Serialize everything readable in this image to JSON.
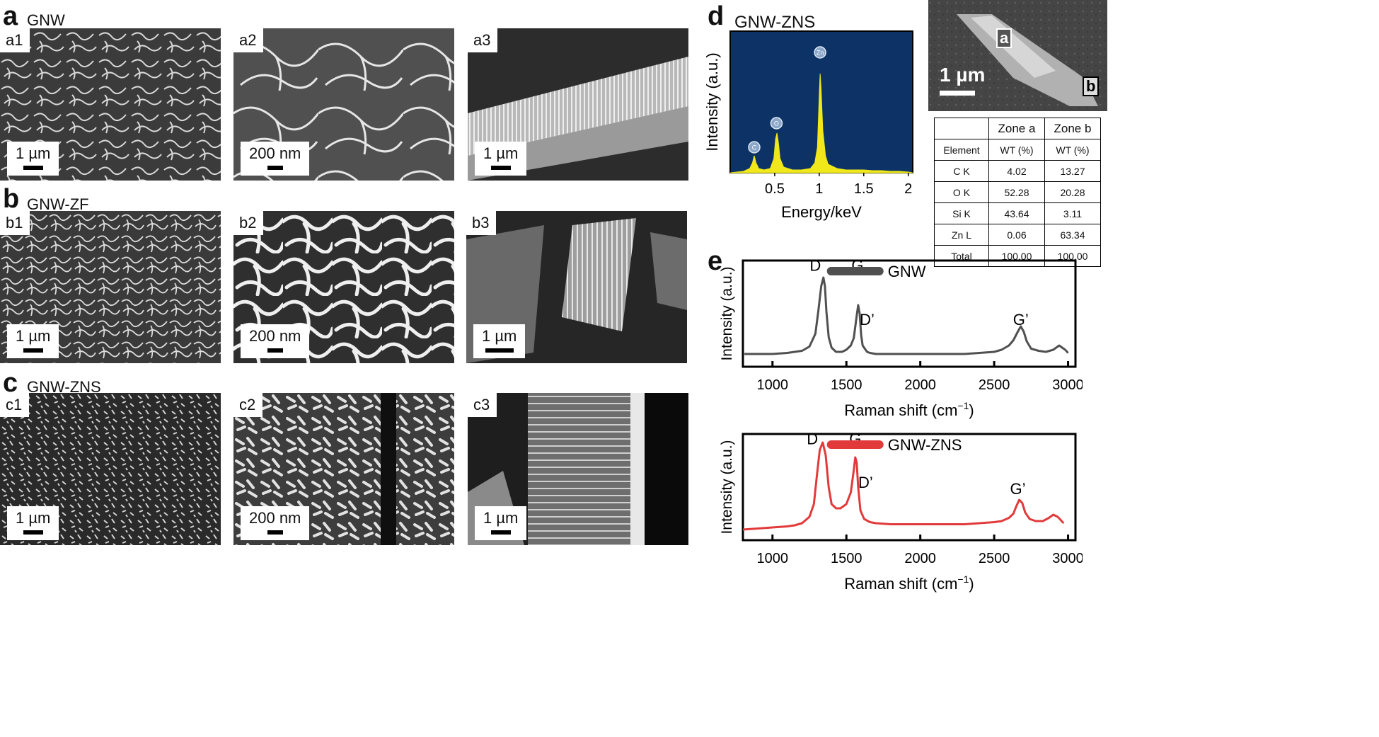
{
  "panels": {
    "a": {
      "letter": "a",
      "label": "GNW",
      "sub": [
        {
          "id": "a1",
          "scale": "1 µm"
        },
        {
          "id": "a2",
          "scale": "200 nm"
        },
        {
          "id": "a3",
          "scale": "1 µm"
        }
      ]
    },
    "b": {
      "letter": "b",
      "label": "GNW-ZF",
      "sub": [
        {
          "id": "b1",
          "scale": "1 µm"
        },
        {
          "id": "b2",
          "scale": "200 nm"
        },
        {
          "id": "b3",
          "scale": "1 µm"
        }
      ]
    },
    "c": {
      "letter": "c",
      "label": "GNW-ZNS",
      "sub": [
        {
          "id": "c1",
          "scale": "1 µm"
        },
        {
          "id": "c2",
          "scale": "200 nm"
        },
        {
          "id": "c3",
          "scale": "1 µm"
        }
      ]
    },
    "d": {
      "letter": "d",
      "label": "GNW-ZNS",
      "sem_scale": "1 µm",
      "zone_a_marker": "a",
      "zone_b_marker": "b"
    },
    "e": {
      "letter": "e"
    }
  },
  "edx_table": {
    "headers": [
      "",
      "Zone a",
      "Zone b"
    ],
    "rows": [
      [
        "Element",
        "WT (%)",
        "WT (%)"
      ],
      [
        "C K",
        "4.02",
        "13.27"
      ],
      [
        "O K",
        "52.28",
        "20.28"
      ],
      [
        "Si K",
        "43.64",
        "3.11"
      ],
      [
        "Zn L",
        "0.06",
        "63.34"
      ],
      [
        "Total",
        "100.00",
        "100.00"
      ]
    ]
  },
  "colors": {
    "edx_bg": "#0d3366",
    "edx_peak": "#f0e81a",
    "gnw_line": "#505050",
    "gnwzns_line": "#e23a3a"
  },
  "chart_data": [
    {
      "type": "area",
      "id": "edx-spectrum",
      "xlabel": "Energy/keV",
      "ylabel": "Intensity (a.u.)",
      "xlim": [
        0.0,
        2.05
      ],
      "ylim": [
        0,
        1.0
      ],
      "xticks": [
        "0.5",
        "1",
        "1.5",
        "2"
      ],
      "peak_labels": [
        {
          "text": "C",
          "x": 0.27,
          "y": 0.18
        },
        {
          "text": "O",
          "x": 0.52,
          "y": 0.35
        },
        {
          "text": "Zn",
          "x": 1.01,
          "y": 0.85
        }
      ],
      "x": [
        0.0,
        0.15,
        0.22,
        0.25,
        0.27,
        0.29,
        0.32,
        0.38,
        0.45,
        0.49,
        0.51,
        0.525,
        0.54,
        0.56,
        0.6,
        0.7,
        0.8,
        0.9,
        0.95,
        0.98,
        1.0,
        1.01,
        1.02,
        1.04,
        1.07,
        1.1,
        1.2,
        1.3,
        1.4,
        1.5,
        1.6,
        1.7,
        1.8,
        1.9,
        2.0,
        2.05
      ],
      "y": [
        0.0,
        0.01,
        0.03,
        0.07,
        0.12,
        0.07,
        0.03,
        0.02,
        0.03,
        0.1,
        0.24,
        0.28,
        0.22,
        0.1,
        0.04,
        0.02,
        0.02,
        0.03,
        0.07,
        0.18,
        0.55,
        0.7,
        0.6,
        0.3,
        0.12,
        0.06,
        0.03,
        0.02,
        0.02,
        0.02,
        0.015,
        0.015,
        0.01,
        0.01,
        0.005,
        0.0
      ]
    },
    {
      "type": "line",
      "id": "raman-gnw",
      "xlabel": "Raman shift (cm",
      "xlabel_sup": "−1",
      "xlabel_end": ")",
      "ylabel": "Intensity (a.u.)",
      "xlim": [
        800,
        3050
      ],
      "ylim": [
        0,
        1.0
      ],
      "xticks": [
        1000,
        1500,
        2000,
        2500,
        3000
      ],
      "legend": "GNW",
      "peak_labels": [
        {
          "text": "D",
          "x": 1290,
          "y": 0.97
        },
        {
          "text": "G",
          "x": 1575,
          "y": 0.97
        },
        {
          "text": "D’",
          "x": 1640,
          "y": 0.46
        },
        {
          "text": "G’",
          "x": 2680,
          "y": 0.46
        }
      ],
      "series": [
        {
          "x": [
            810,
            900,
            1000,
            1100,
            1200,
            1250,
            1290,
            1310,
            1330,
            1345,
            1355,
            1365,
            1380,
            1400,
            1430,
            1470,
            1500,
            1530,
            1550,
            1570,
            1580,
            1590,
            1600,
            1610,
            1625,
            1640,
            1660,
            1700,
            1800,
            1900,
            2000,
            2100,
            2200,
            2300,
            2400,
            2500,
            2550,
            2600,
            2630,
            2660,
            2680,
            2700,
            2720,
            2750,
            2800,
            2850,
            2900,
            2940,
            2980,
            3000
          ],
          "y": [
            0.12,
            0.12,
            0.12,
            0.13,
            0.15,
            0.19,
            0.31,
            0.52,
            0.76,
            0.84,
            0.76,
            0.52,
            0.28,
            0.18,
            0.14,
            0.14,
            0.16,
            0.2,
            0.27,
            0.48,
            0.58,
            0.5,
            0.3,
            0.2,
            0.17,
            0.14,
            0.13,
            0.12,
            0.12,
            0.12,
            0.12,
            0.12,
            0.12,
            0.12,
            0.13,
            0.14,
            0.16,
            0.2,
            0.25,
            0.33,
            0.38,
            0.33,
            0.24,
            0.17,
            0.15,
            0.14,
            0.16,
            0.2,
            0.16,
            0.13
          ]
        }
      ]
    },
    {
      "type": "line",
      "id": "raman-gnwzns",
      "xlabel": "Raman shift (cm",
      "xlabel_sup": "−1",
      "xlabel_end": ")",
      "ylabel": "Intensity (a.u.)",
      "xlim": [
        800,
        3050
      ],
      "ylim": [
        0,
        1.0
      ],
      "xticks": [
        1000,
        1500,
        2000,
        2500,
        3000
      ],
      "legend": "GNW-ZNS",
      "peak_labels": [
        {
          "text": "D",
          "x": 1270,
          "y": 0.97
        },
        {
          "text": "G",
          "x": 1560,
          "y": 0.97
        },
        {
          "text": "D’",
          "x": 1630,
          "y": 0.56
        },
        {
          "text": "G’",
          "x": 2660,
          "y": 0.5
        }
      ],
      "series": [
        {
          "x": [
            800,
            900,
            1000,
            1100,
            1150,
            1200,
            1250,
            1280,
            1300,
            1320,
            1340,
            1360,
            1380,
            1400,
            1430,
            1460,
            1500,
            1530,
            1550,
            1560,
            1570,
            1580,
            1595,
            1620,
            1660,
            1700,
            1800,
            1900,
            2000,
            2100,
            2200,
            2300,
            2400,
            2500,
            2550,
            2600,
            2630,
            2650,
            2670,
            2690,
            2710,
            2740,
            2780,
            2830,
            2870,
            2900,
            2930,
            2970
          ],
          "y": [
            0.1,
            0.11,
            0.12,
            0.13,
            0.14,
            0.16,
            0.22,
            0.34,
            0.6,
            0.85,
            0.92,
            0.8,
            0.5,
            0.34,
            0.3,
            0.3,
            0.34,
            0.45,
            0.66,
            0.78,
            0.73,
            0.5,
            0.28,
            0.2,
            0.17,
            0.16,
            0.15,
            0.15,
            0.15,
            0.15,
            0.15,
            0.15,
            0.16,
            0.17,
            0.18,
            0.21,
            0.25,
            0.32,
            0.38,
            0.35,
            0.26,
            0.2,
            0.18,
            0.18,
            0.21,
            0.24,
            0.22,
            0.16
          ]
        }
      ]
    }
  ]
}
